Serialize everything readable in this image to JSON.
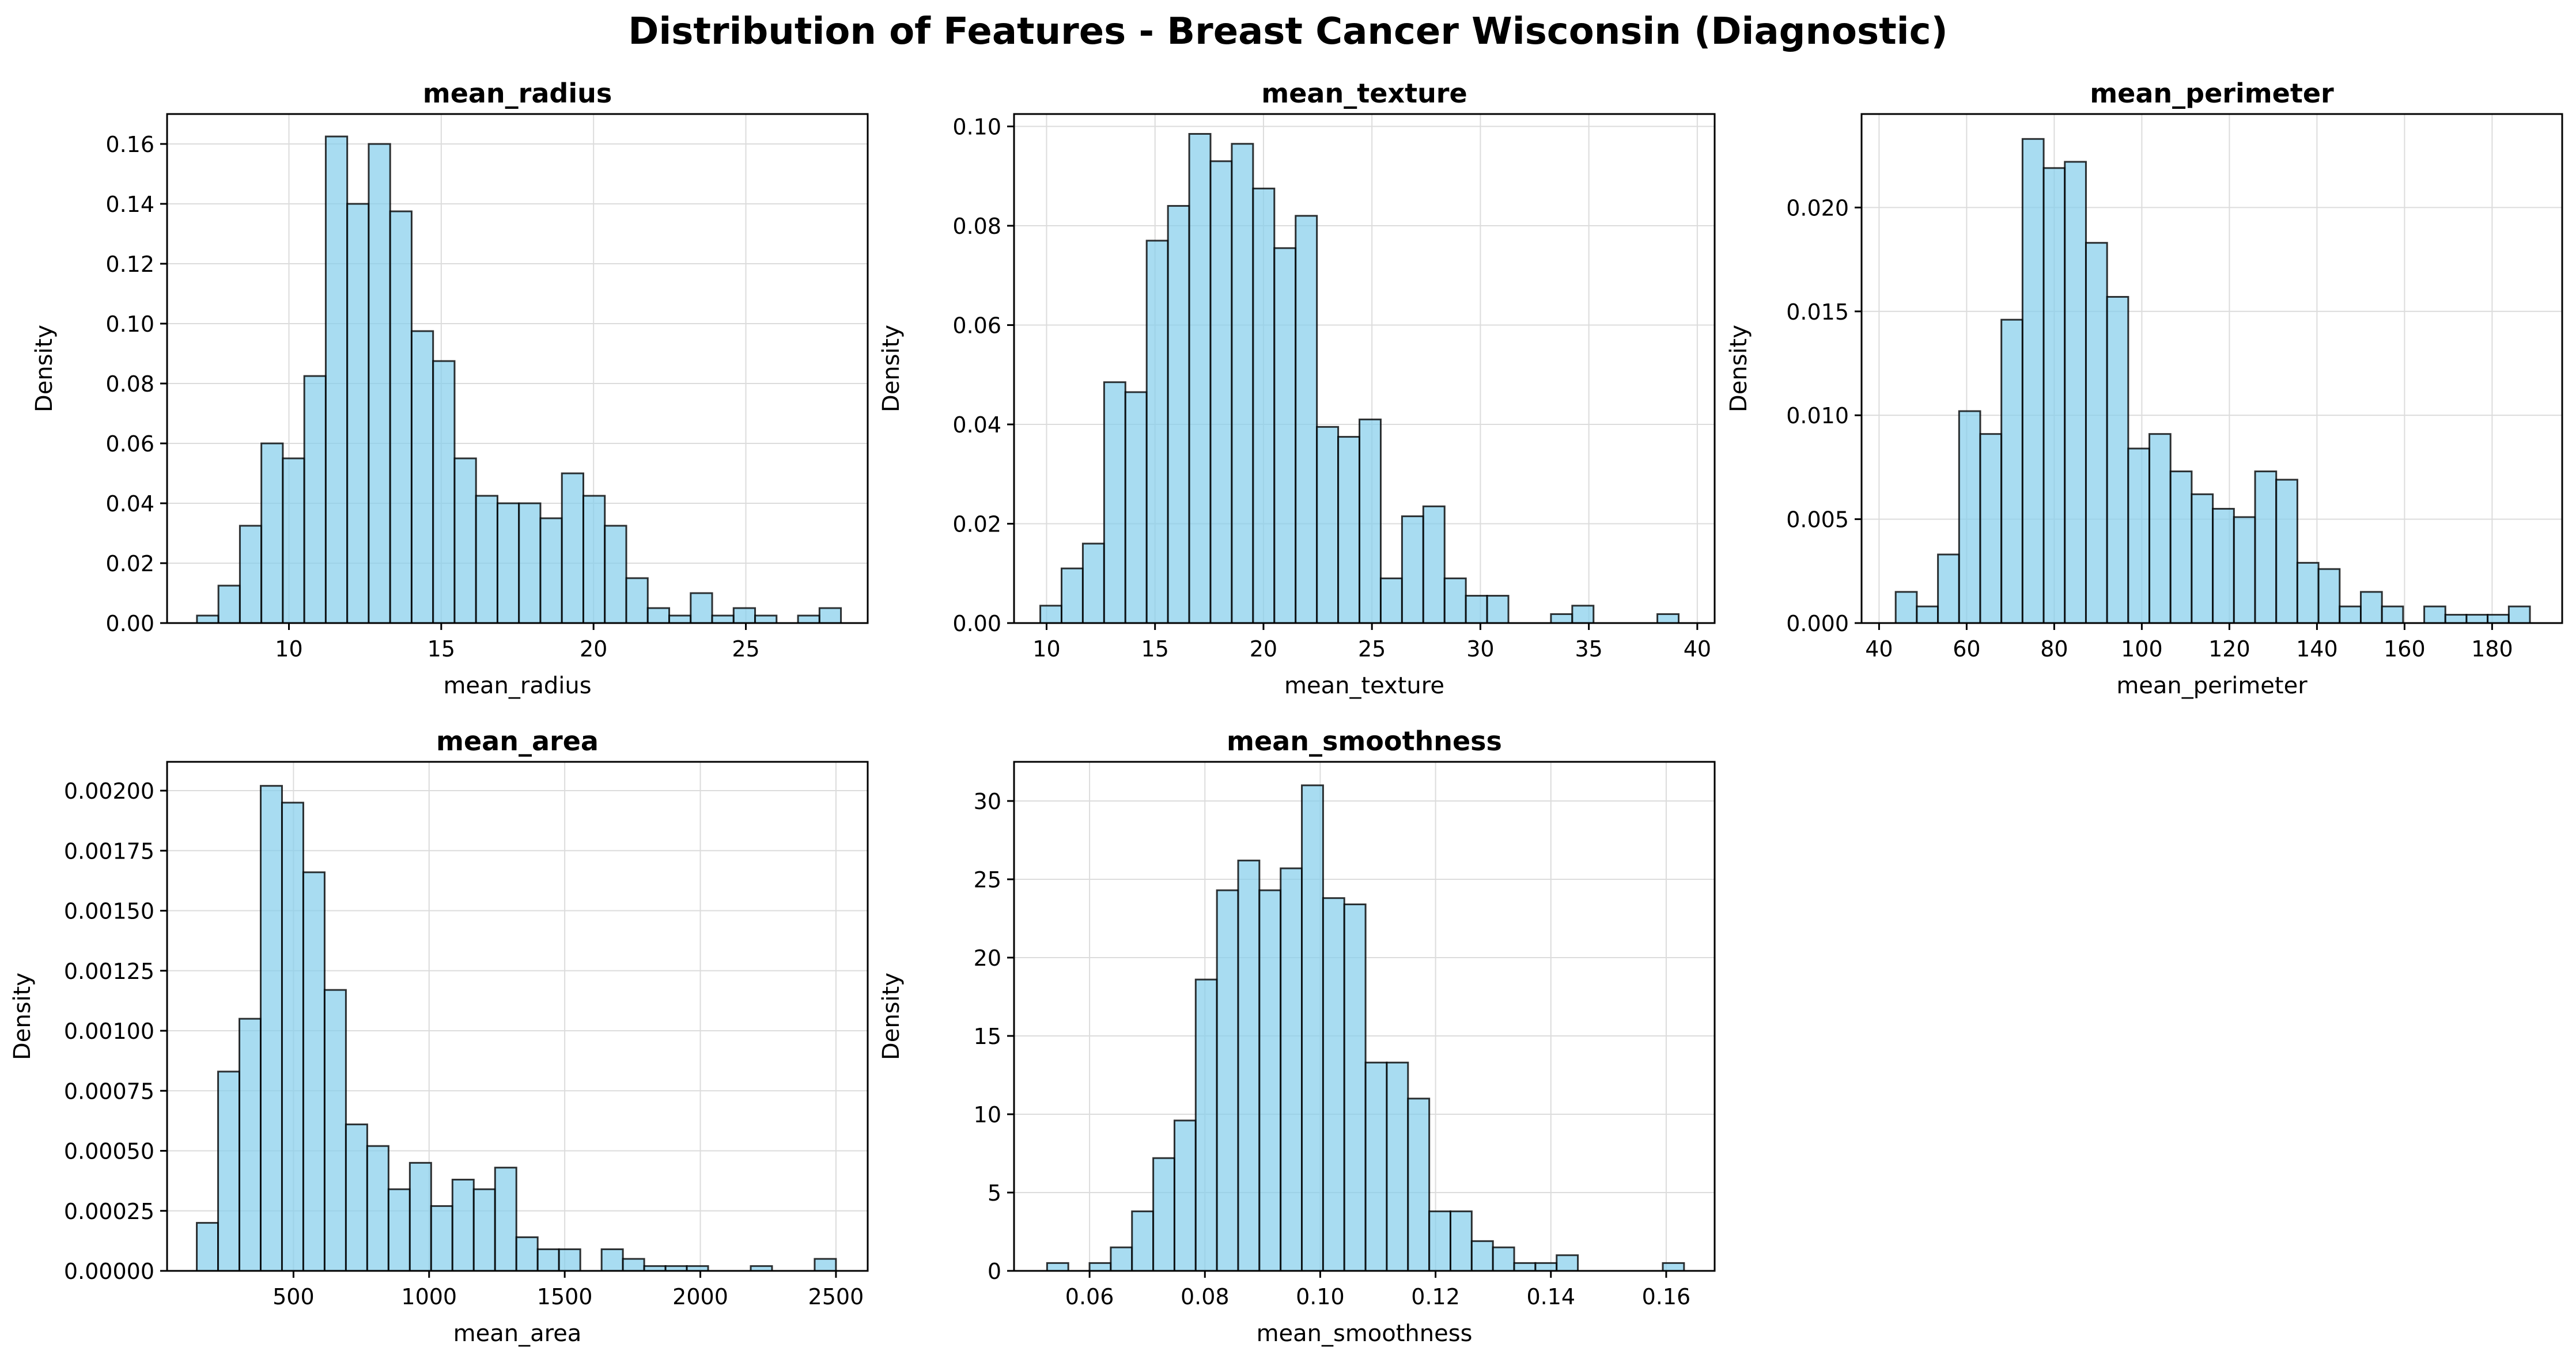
{
  "title": "Distribution of Features - Breast Cancer Wisconsin (Diagnostic)",
  "chart_data": [
    {
      "type": "bar",
      "title": "mean_radius",
      "xlabel": "mean_radius",
      "ylabel": "Density",
      "xlim": [
        6.0,
        29.0
      ],
      "ylim": [
        0,
        0.17
      ],
      "xticks": [
        10,
        15,
        20,
        25
      ],
      "yticks": [
        0.0,
        0.02,
        0.04,
        0.06,
        0.08,
        0.1,
        0.12,
        0.14,
        0.16
      ],
      "yticks_labels": [
        "0.00",
        "0.02",
        "0.04",
        "0.06",
        "0.08",
        "0.10",
        "0.12",
        "0.14",
        "0.16"
      ],
      "bin_start": 6.981,
      "bin_width": 0.7047,
      "values": [
        0.0025,
        0.0125,
        0.0325,
        0.06,
        0.055,
        0.0825,
        0.1625,
        0.14,
        0.16,
        0.1375,
        0.0975,
        0.0875,
        0.055,
        0.0425,
        0.04,
        0.04,
        0.035,
        0.05,
        0.0425,
        0.0325,
        0.015,
        0.005,
        0.0025,
        0.01,
        0.0025,
        0.005,
        0.0025,
        0.0,
        0.0025,
        0.005
      ],
      "grid": true,
      "bar_color": "#87ceeb",
      "edge_color": "#000000"
    },
    {
      "type": "bar",
      "title": "mean_texture",
      "xlabel": "mean_texture",
      "ylabel": "Density",
      "xlim": [
        8.5,
        40.8
      ],
      "ylim": [
        0,
        0.1025
      ],
      "xticks": [
        10,
        15,
        20,
        25,
        30,
        35,
        40
      ],
      "yticks": [
        0.0,
        0.02,
        0.04,
        0.06,
        0.08,
        0.1
      ],
      "yticks_labels": [
        "0.00",
        "0.02",
        "0.04",
        "0.06",
        "0.08",
        "0.10"
      ],
      "bin_start": 9.71,
      "bin_width": 0.981,
      "values": [
        0.0035,
        0.011,
        0.016,
        0.0485,
        0.0465,
        0.077,
        0.084,
        0.0985,
        0.093,
        0.0965,
        0.0875,
        0.0755,
        0.082,
        0.0395,
        0.0375,
        0.041,
        0.009,
        0.0215,
        0.0235,
        0.009,
        0.0055,
        0.0055,
        0.0,
        0.0,
        0.0018,
        0.0035,
        0.0,
        0.0,
        0.0,
        0.0018
      ],
      "grid": true,
      "bar_color": "#87ceeb",
      "edge_color": "#000000"
    },
    {
      "type": "bar",
      "title": "mean_perimeter",
      "xlabel": "mean_perimeter",
      "ylabel": "Density",
      "xlim": [
        36.0,
        196.0
      ],
      "ylim": [
        0,
        0.0245
      ],
      "xticks": [
        40,
        60,
        80,
        100,
        120,
        140,
        160,
        180
      ],
      "yticks": [
        0.0,
        0.005,
        0.01,
        0.015,
        0.02
      ],
      "yticks_labels": [
        "0.000",
        "0.005",
        "0.010",
        "0.015",
        "0.020"
      ],
      "bin_start": 43.79,
      "bin_width": 4.8283,
      "values": [
        0.0015,
        0.0008,
        0.0033,
        0.0102,
        0.0091,
        0.0146,
        0.0233,
        0.0219,
        0.0222,
        0.0183,
        0.0157,
        0.0084,
        0.0091,
        0.0073,
        0.0062,
        0.0055,
        0.0051,
        0.0073,
        0.0069,
        0.0029,
        0.0026,
        0.0008,
        0.0015,
        0.0008,
        0.0,
        0.0008,
        0.0004,
        0.0004,
        0.0004,
        0.0008
      ],
      "grid": true,
      "bar_color": "#87ceeb",
      "edge_color": "#000000"
    },
    {
      "type": "bar",
      "title": "mean_area",
      "xlabel": "mean_area",
      "ylabel": "Density",
      "xlim": [
        34.0,
        2617.0
      ],
      "ylim": [
        0,
        0.00212
      ],
      "xticks": [
        500,
        1000,
        1500,
        2000,
        2500
      ],
      "yticks": [
        0.0,
        0.00025,
        0.0005,
        0.00075,
        0.001,
        0.00125,
        0.0015,
        0.00175,
        0.002
      ],
      "yticks_labels": [
        "0.00000",
        "0.00025",
        "0.00050",
        "0.00075",
        "0.00100",
        "0.00125",
        "0.00150",
        "0.00175",
        "0.00200"
      ],
      "bin_start": 143.5,
      "bin_width": 78.55,
      "values": [
        0.0002,
        0.00083,
        0.00105,
        0.00202,
        0.00195,
        0.00166,
        0.00117,
        0.00061,
        0.00052,
        0.00034,
        0.00045,
        0.00027,
        0.00038,
        0.00034,
        0.00043,
        0.00014,
        9e-05,
        9e-05,
        0.0,
        9e-05,
        5e-05,
        2e-05,
        2e-05,
        2e-05,
        0.0,
        0.0,
        2e-05,
        0.0,
        0.0,
        5e-05
      ],
      "grid": true,
      "bar_color": "#87ceeb",
      "edge_color": "#000000"
    },
    {
      "type": "bar",
      "title": "mean_smoothness",
      "xlabel": "mean_smoothness",
      "ylabel": "Density",
      "xlim": [
        0.0469,
        0.1684
      ],
      "ylim": [
        0,
        32.5
      ],
      "xticks": [
        0.06,
        0.08,
        0.1,
        0.12,
        0.14,
        0.16
      ],
      "yticks": [
        0,
        5,
        10,
        15,
        20,
        25,
        30
      ],
      "yticks_labels": [
        "0",
        "5",
        "10",
        "15",
        "20",
        "25",
        "30"
      ],
      "bin_start": 0.05263,
      "bin_width": 0.003682,
      "values": [
        0.5,
        0.0,
        0.5,
        1.5,
        3.8,
        7.2,
        9.6,
        18.6,
        24.3,
        26.2,
        24.3,
        25.7,
        31.0,
        23.8,
        23.4,
        13.3,
        13.3,
        11.0,
        3.8,
        3.8,
        1.9,
        1.5,
        0.5,
        0.5,
        1.0,
        0.0,
        0.0,
        0.0,
        0.0,
        0.5
      ],
      "grid": true,
      "bar_color": "#87ceeb",
      "edge_color": "#000000"
    }
  ]
}
